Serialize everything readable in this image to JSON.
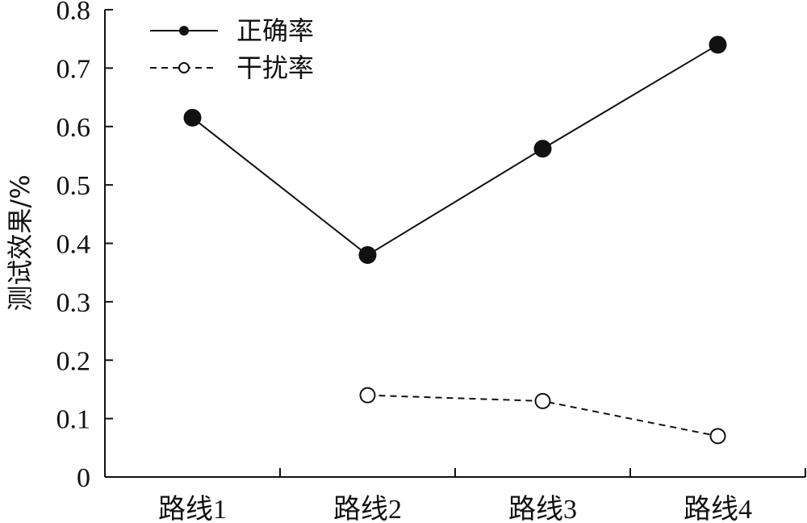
{
  "chart_data": {
    "type": "line",
    "categories": [
      "路线1",
      "路线2",
      "路线3",
      "路线4"
    ],
    "series": [
      {
        "name": "正确率",
        "values": [
          0.615,
          0.38,
          0.562,
          0.74
        ],
        "marker": "filled-circle",
        "line": "solid"
      },
      {
        "name": "干扰率",
        "values": [
          null,
          0.14,
          0.13,
          0.07
        ],
        "marker": "open-circle",
        "line": "dashed"
      }
    ],
    "title": "",
    "xlabel": "",
    "ylabel": "测试效果/%",
    "ylim": [
      0,
      0.8
    ],
    "yticks": [
      "0",
      "0.1",
      "0.2",
      "0.3",
      "0.4",
      "0.5",
      "0.6",
      "0.7",
      "0.8"
    ],
    "grid": false,
    "legend": "top-left",
    "colors": {
      "line": "#111111",
      "marker_fill": "#111111",
      "open_marker_fill": "#ffffff"
    }
  }
}
